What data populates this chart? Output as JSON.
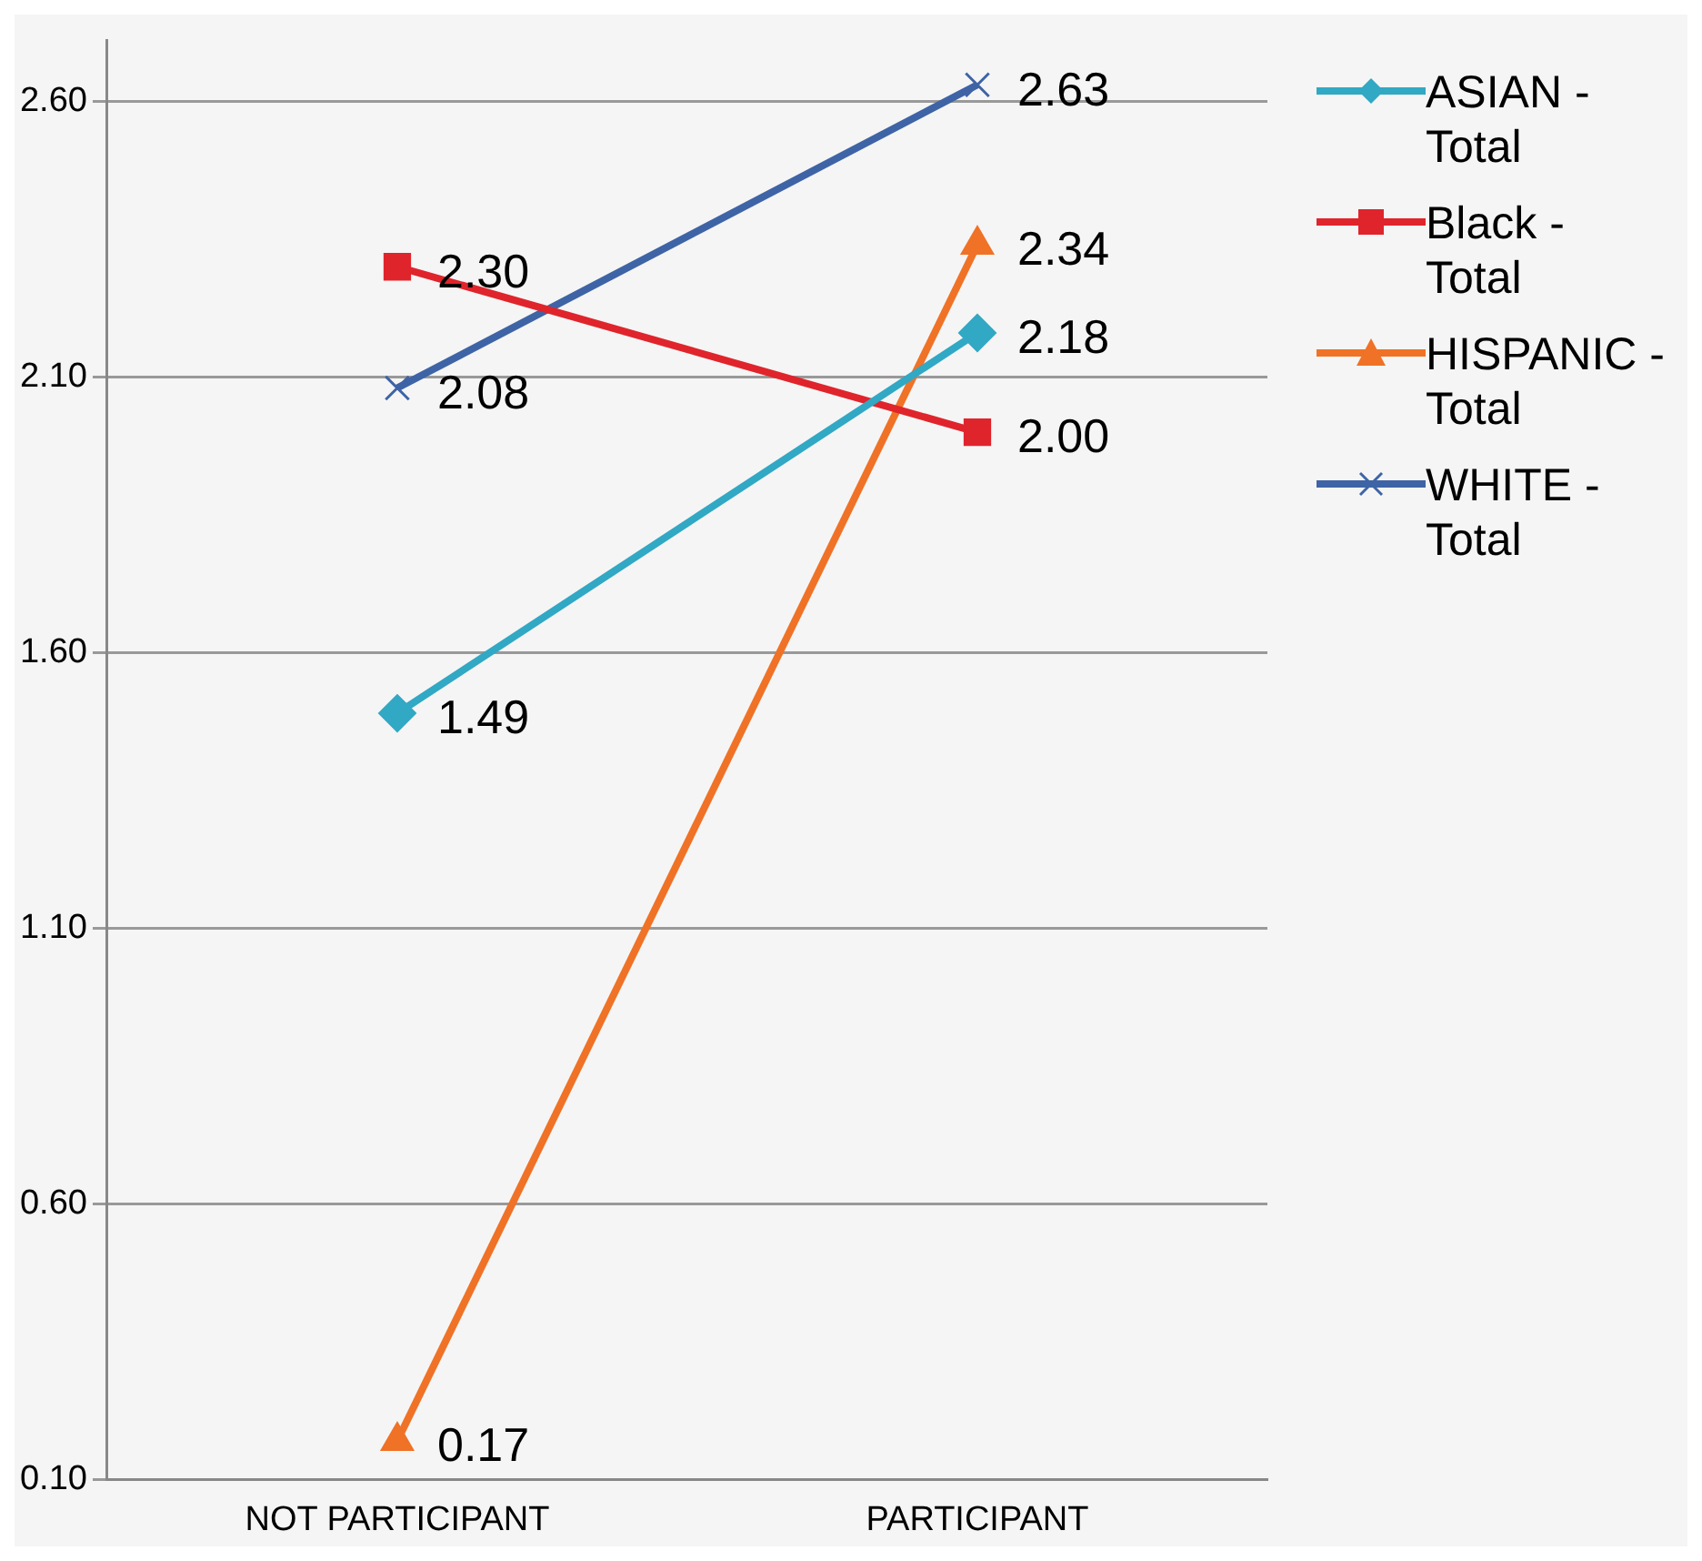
{
  "chart_data": {
    "type": "line",
    "categories": [
      "NOT PARTICIPANT",
      "PARTICIPANT"
    ],
    "series": [
      {
        "name": "ASIAN -\nTotal",
        "color": "#31a8c4",
        "marker": "diamond",
        "values": [
          1.49,
          2.18
        ],
        "value_labels": [
          "1.49",
          "2.18"
        ]
      },
      {
        "name": "Black -\nTotal",
        "color": "#e0242c",
        "marker": "square",
        "values": [
          2.3,
          2.0
        ],
        "value_labels": [
          "2.30",
          "2.00"
        ]
      },
      {
        "name": "HISPANIC -\nTotal",
        "color": "#f07226",
        "marker": "triangle",
        "values": [
          0.17,
          2.34
        ],
        "value_labels": [
          "0.17",
          "2.34"
        ]
      },
      {
        "name": "WHITE -\nTotal",
        "color": "#3e64a6",
        "marker": "cross",
        "values": [
          2.08,
          2.63
        ],
        "value_labels": [
          "2.08",
          "2.63"
        ]
      }
    ],
    "ylim": [
      0.1,
      2.71
    ],
    "yticks": [
      {
        "value": 0.1,
        "label": "0.10"
      },
      {
        "value": 0.6,
        "label": "0.60"
      },
      {
        "value": 1.1,
        "label": "1.10"
      },
      {
        "value": 1.6,
        "label": "1.60"
      },
      {
        "value": 2.1,
        "label": "2.10"
      },
      {
        "value": 2.6,
        "label": "2.60"
      }
    ],
    "grid": "y",
    "legend": "right"
  }
}
